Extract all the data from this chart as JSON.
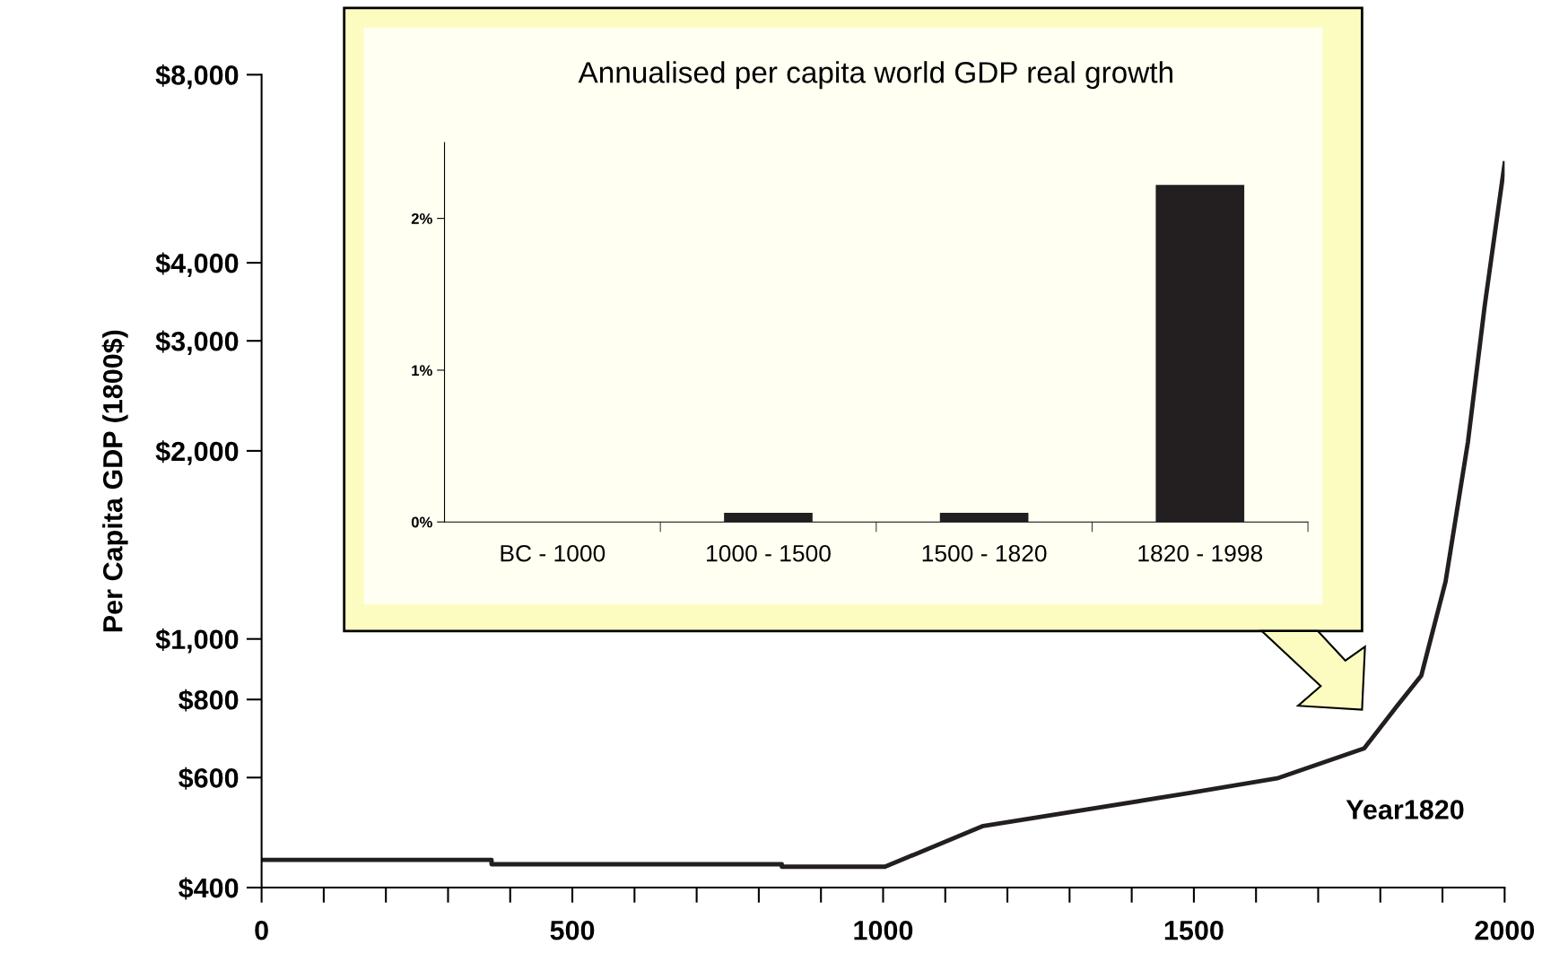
{
  "chart_data": [
    {
      "type": "line",
      "ylabel": "Per Capita GDP (1800$)",
      "log": true,
      "grid": false,
      "xlim": [
        0,
        2000
      ],
      "xticks": [
        0,
        500,
        1000,
        1500,
        2000
      ],
      "ylim": [
        400,
        8000
      ],
      "yticks": [
        {
          "value": 400,
          "label": "$400"
        },
        {
          "value": 600,
          "label": "$600"
        },
        {
          "value": 800,
          "label": "$800"
        },
        {
          "value": 1000,
          "label": "$1,000"
        },
        {
          "value": 2000,
          "label": "$2,000"
        },
        {
          "value": 3000,
          "label": "$3,000"
        },
        {
          "value": 4000,
          "label": "$4,000"
        },
        {
          "value": 8000,
          "label": "$8,000"
        }
      ],
      "x": [
        0,
        370,
        370,
        837,
        837,
        1003,
        1161,
        1494,
        1636,
        1774,
        1826,
        1866,
        1905,
        1941,
        1968,
        2000
      ],
      "series": [
        {
          "color": "#231f20",
          "values": [
            443,
            443,
            436,
            436,
            432,
            432,
            502,
            567,
            599,
            668,
            779,
            874,
            1236,
            2068,
            3417,
            5770
          ]
        }
      ],
      "annotations": [
        "Year1820"
      ]
    },
    {
      "type": "bar",
      "title": "Annualised per capita world GDP real growth",
      "categories": [
        "BC - 1000",
        "1000 - 1500",
        "1500 - 1820",
        "1820 - 1998"
      ],
      "values": [
        0,
        0.06,
        0.06,
        2.22
      ],
      "color": "#231f20",
      "grid": false,
      "ylim": [
        0,
        2.5
      ],
      "yticks": [
        {
          "value": 0,
          "label": "0%"
        },
        {
          "value": 1,
          "label": "1%"
        },
        {
          "value": 2,
          "label": "2%"
        }
      ]
    }
  ]
}
